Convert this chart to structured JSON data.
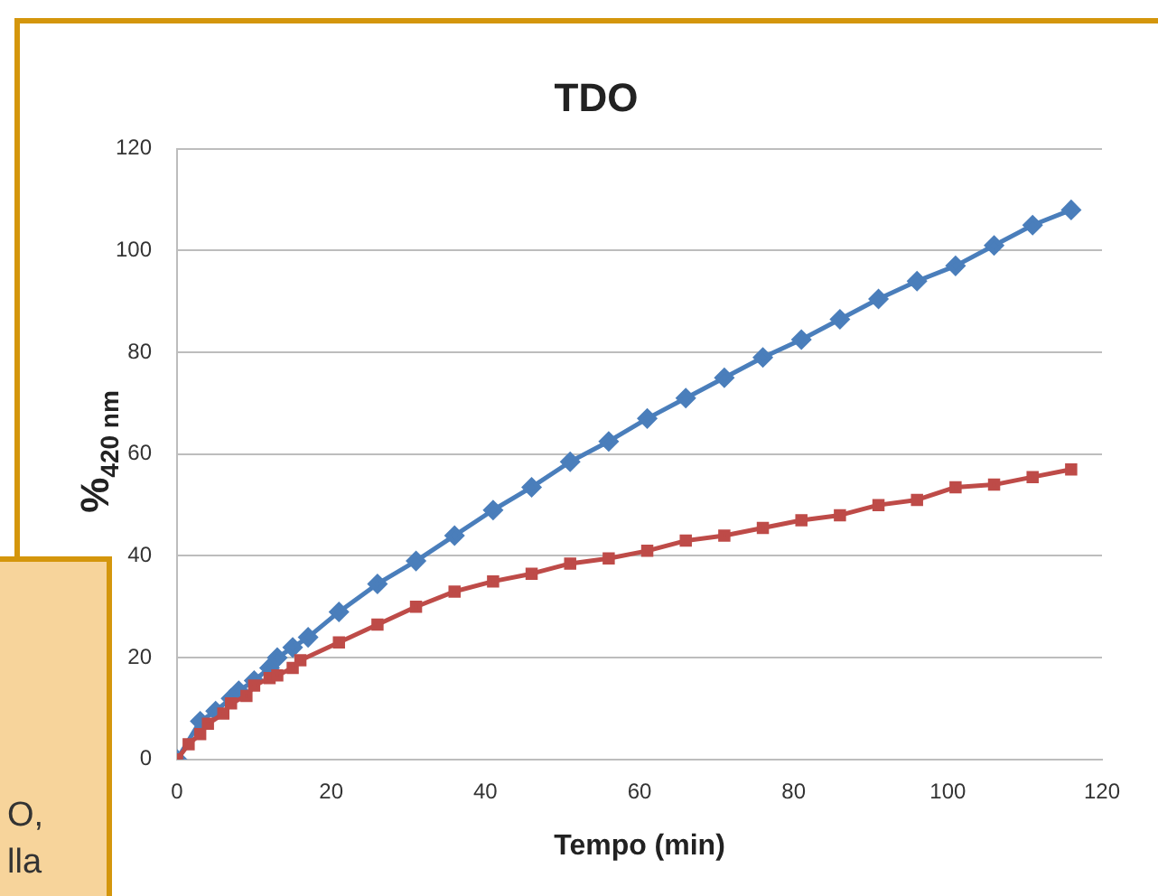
{
  "chart_data": {
    "type": "line",
    "title": "TDO",
    "xlabel": "Tempo (min)",
    "ylabel": "%$_{420 nm}$",
    "xlim": [
      0,
      120
    ],
    "xticks": [
      0,
      20,
      40,
      60,
      80,
      100,
      120
    ],
    "ylim": [
      0,
      120
    ],
    "yticks": [
      0,
      20,
      40,
      60,
      80,
      100,
      120
    ],
    "grid": "y",
    "legend": false,
    "line_style": "solid",
    "series": [
      {
        "color": "#4a7ebb",
        "marker": "diamond",
        "x": [
          0,
          3,
          5,
          7,
          8,
          10,
          12,
          13,
          15,
          17,
          21,
          26,
          31,
          36,
          41,
          46,
          51,
          56,
          61,
          66,
          71,
          76,
          81,
          86,
          91,
          96,
          101,
          106,
          111,
          116
        ],
        "values": [
          0,
          7.5,
          9.5,
          12,
          13.5,
          15.5,
          18,
          20,
          22,
          24,
          29,
          34.5,
          39,
          44,
          49,
          53.5,
          58.5,
          62.5,
          67,
          71,
          75,
          79,
          82.5,
          86.5,
          90.5,
          94,
          97,
          101,
          105,
          108
        ]
      },
      {
        "color": "#be4b48",
        "marker": "square",
        "x": [
          0,
          1.5,
          3,
          4,
          6,
          7,
          9,
          10,
          12,
          13,
          15,
          16,
          21,
          26,
          31,
          36,
          41,
          46,
          51,
          56,
          61,
          66,
          71,
          76,
          81,
          86,
          91,
          96,
          101,
          106,
          111,
          116
        ],
        "values": [
          0,
          3,
          5,
          7,
          9,
          11,
          12.5,
          14.5,
          16,
          16.5,
          18,
          19.5,
          23,
          26.5,
          30,
          33,
          35,
          36.5,
          38.5,
          39.5,
          41,
          43,
          44,
          45.5,
          47,
          48,
          50,
          51,
          53.5,
          54,
          55.5,
          57
        ]
      }
    ],
    "annotations": [
      "O,",
      "lla"
    ]
  }
}
